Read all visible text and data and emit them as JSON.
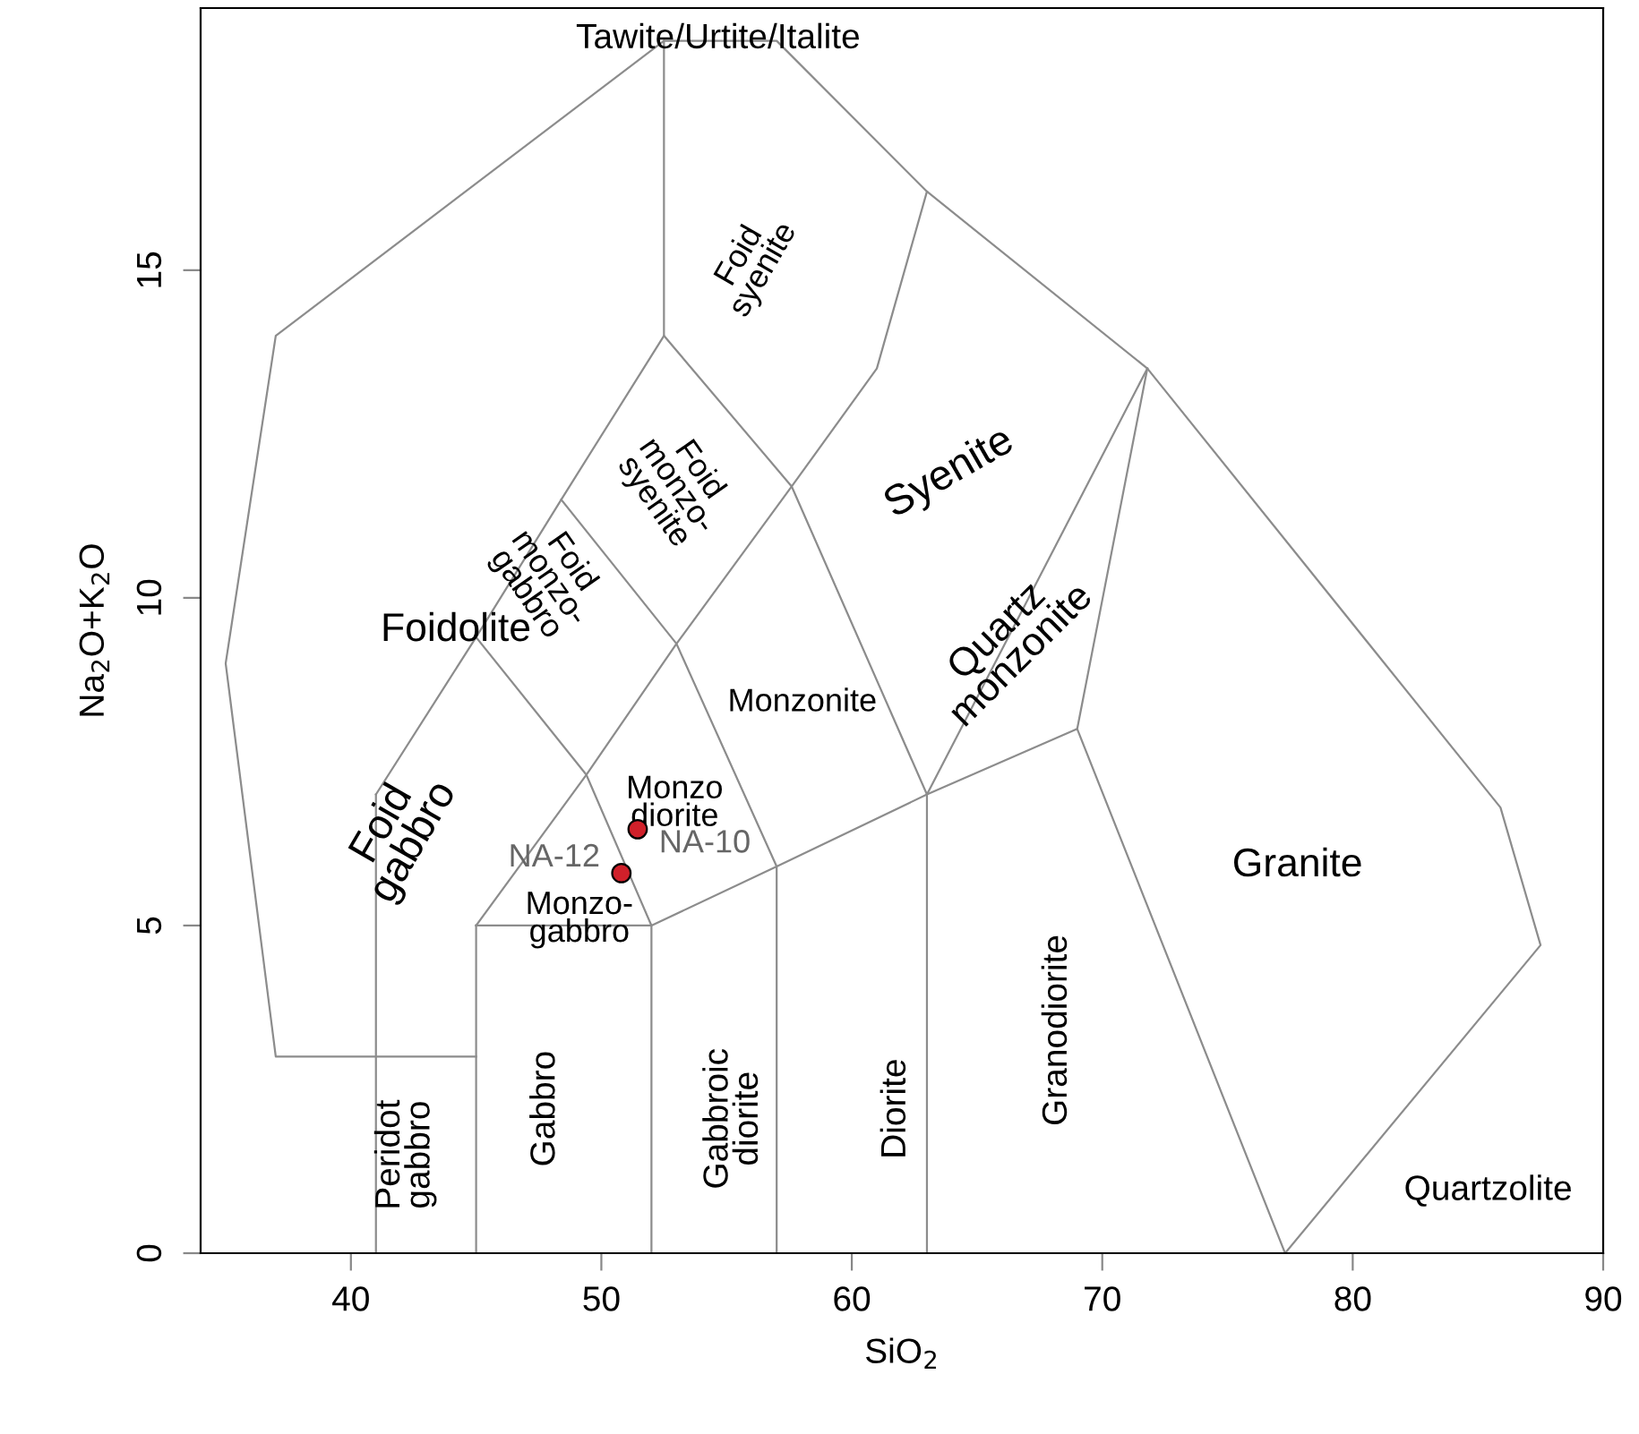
{
  "chart_data": {
    "type": "scatter",
    "xlabel": "SiO$_{2}$",
    "ylabel": "Na$_{2}$O+K$_{2}$O",
    "xlim": [
      34,
      90
    ],
    "ylim": [
      0,
      19
    ],
    "xticks": [
      40,
      50,
      60,
      70,
      80,
      90
    ],
    "yticks": [
      0,
      5,
      10,
      15
    ],
    "grid": false,
    "legend": false,
    "series": [
      {
        "type": "line",
        "color": "#8c8c8c",
        "x": [
          45,
          37,
          35,
          37,
          52.5,
          57,
          63,
          71.8,
          85.9,
          87.5,
          77.3
        ],
        "values": [
          3,
          3,
          9,
          14,
          18.5,
          18.5,
          16.2,
          13.5,
          6.8,
          4.7,
          0
        ]
      },
      {
        "type": "line",
        "color": "#8c8c8c",
        "x": [
          41,
          41
        ],
        "values": [
          0,
          7
        ]
      },
      {
        "type": "line",
        "color": "#8c8c8c",
        "x": [
          41,
          45,
          48.4,
          52.5,
          52.5
        ],
        "values": [
          7,
          9.4,
          11.5,
          14,
          18.5
        ]
      },
      {
        "type": "line",
        "color": "#8c8c8c",
        "x": [
          45,
          45
        ],
        "values": [
          0,
          5
        ]
      },
      {
        "type": "line",
        "color": "#8c8c8c",
        "x": [
          45,
          52,
          52
        ],
        "values": [
          5,
          5,
          0
        ]
      },
      {
        "type": "line",
        "color": "#8c8c8c",
        "x": [
          45,
          49.4,
          53,
          57.6,
          61,
          63
        ],
        "values": [
          5,
          7.3,
          9.3,
          11.7,
          13.5,
          16.2
        ]
      },
      {
        "type": "line",
        "color": "#8c8c8c",
        "x": [
          45,
          49.4,
          52,
          57,
          63,
          69,
          71.8
        ],
        "values": [
          9.4,
          7.3,
          5,
          5.9,
          7,
          8,
          13.5
        ]
      },
      {
        "type": "line",
        "color": "#8c8c8c",
        "x": [
          48.4,
          53,
          57,
          57
        ],
        "values": [
          11.5,
          9.3,
          5.9,
          0
        ]
      },
      {
        "type": "line",
        "color": "#8c8c8c",
        "x": [
          52.5,
          57.6,
          63,
          63
        ],
        "values": [
          14,
          11.7,
          7,
          0
        ]
      },
      {
        "type": "line",
        "color": "#8c8c8c",
        "x": [
          63,
          71.8
        ],
        "values": [
          7,
          13.5
        ]
      },
      {
        "type": "line",
        "color": "#8c8c8c",
        "x": [
          69,
          77.3
        ],
        "values": [
          8,
          0
        ]
      },
      {
        "color": "#d0202a",
        "marker": "circle",
        "x": [
          51.45,
          50.8
        ],
        "values": [
          6.47,
          5.8
        ]
      }
    ],
    "annotations": [
      "Tawite/Urtite/Italite",
      "Foidolite",
      "Foid\ngabbro",
      "Foid\nmonzo-\ngabbro",
      "Foid\nmonzo-\nsyenite",
      "Foid\nsyenite",
      "Syenite",
      "Monzonite",
      "Quartz\nmonzonite",
      "Granite",
      "Monzo\ndiorite",
      "Monzo-\ngabbro",
      "Peridot\ngabbro",
      "Gabbro",
      "Gabbroic\ndiorite",
      "Diorite",
      "Granodiorite",
      "Quartzolite",
      {
        "text": "NA-12",
        "x": 50.8,
        "y": 5.8
      },
      {
        "text": "NA-10",
        "x": 51.45,
        "y": 6.47
      }
    ]
  }
}
